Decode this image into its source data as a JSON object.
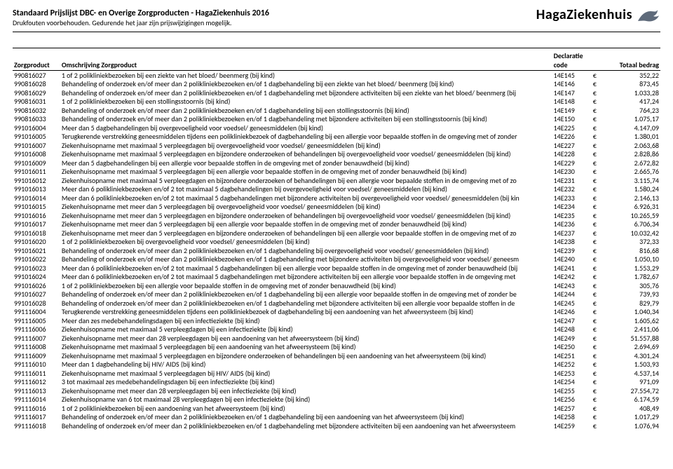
{
  "header": {
    "title": "Standaard Prijslijst DBC- en Overige Zorgproducten - HagaZiekenhuis 2016",
    "subtitle": "Drukfouten voorbehouden. Gedurende het jaar zijn prijswijzigingen mogelijk."
  },
  "logo": {
    "text": "HagaZiekenhuis",
    "mark_fill": "#5e6a7a"
  },
  "columns": {
    "zorgproduct": "Zorgproduct",
    "omschrijving": "Omschrijving Zorgproduct",
    "declaratie_top": "Declaratie",
    "declaratie_bottom": "code",
    "totaal": "Totaal bedrag"
  },
  "currency_symbol": "€",
  "rows": [
    {
      "code": "990816027",
      "oms": "1 of 2 polikliniekbezoeken bij een ziekte van het bloed/ beenmerg (bij kind)",
      "decl": "14E145",
      "amt": "352,22"
    },
    {
      "code": "990816028",
      "oms": "Behandeling of onderzoek en/of meer dan 2 polikliniekbezoeken en/of 1 dagbehandeling bij een ziekte van het bloed/ beenmerg (bij kind)",
      "decl": "14E146",
      "amt": "873,45"
    },
    {
      "code": "990816029",
      "oms": "Behandeling of onderzoek en/of meer dan 2 polikliniekbezoeken en/of 1 dagbehandeling met bijzondere activiteiten bij een ziekte van het bloed/ beenmerg (bij",
      "decl": "14E147",
      "amt": "1.033,28"
    },
    {
      "code": "990816031",
      "oms": "1 of 2 polikliniekbezoeken bij een stollingsstoornis (bij kind)",
      "decl": "14E148",
      "amt": "417,24"
    },
    {
      "code": "990816032",
      "oms": "Behandeling of onderzoek en/of meer dan 2 polikliniekbezoeken en/of 1 dagbehandeling bij een stollingsstoornis (bij kind)",
      "decl": "14E149",
      "amt": "764,23"
    },
    {
      "code": "990816033",
      "oms": "Behandeling of onderzoek en/of meer dan 2 polikliniekbezoeken en/of 1 dagbehandeling met bijzondere activiteiten bij een stollingsstoornis (bij kind)",
      "decl": "14E150",
      "amt": "1.075,17"
    },
    {
      "code": "991016004",
      "oms": "Meer dan 5 dagbehandelingen bij overgevoeligheid voor voedsel/ geneesmiddelen (bij kind)",
      "decl": "14E225",
      "amt": "4.147,09"
    },
    {
      "code": "991016005",
      "oms": "Terugkerende verstrekking geneesmiddelen tijdens een polikliniekbezoek of dagbehandeling bij een allergie voor bepaalde stoffen in de omgeving met of zonder",
      "decl": "14E226",
      "amt": "1.380,01"
    },
    {
      "code": "991016007",
      "oms": "Ziekenhuisopname met maximaal 5 verpleegdagen bij overgevoeligheid voor voedsel/ geneesmiddelen (bij kind)",
      "decl": "14E227",
      "amt": "2.063,68"
    },
    {
      "code": "991016008",
      "oms": "Ziekenhuisopname met maximaal 5 verpleegdagen en bijzondere onderzoeken of behandelingen bij overgevoeligheid voor voedsel/ geneesmiddelen (bij kind)",
      "decl": "14E228",
      "amt": "2.828,86"
    },
    {
      "code": "991016009",
      "oms": "Meer dan 5 dagbehandelingen bij een allergie voor bepaalde stoffen in de omgeving met of zonder benauwdheid (bij kind)",
      "decl": "14E229",
      "amt": "2.672,82"
    },
    {
      "code": "991016011",
      "oms": "Ziekenhuisopname met maximaal 5 verpleegdagen bij een allergie voor bepaalde stoffen in de omgeving met of zonder benauwdheid (bij kind)",
      "decl": "14E230",
      "amt": "2.665,76"
    },
    {
      "code": "991016012",
      "oms": "Ziekenhuisopname met maximaal 5 verpleegdagen en bijzondere onderzoeken of behandelingen bij een allergie voor bepaalde stoffen in de omgeving met of zo",
      "decl": "14E231",
      "amt": "3.115,74"
    },
    {
      "code": "991016013",
      "oms": "Meer dan 6 polikliniekbezoeken en/of 2 tot maximaal 5 dagbehandelingen bij overgevoeligheid voor voedsel/ geneesmiddelen (bij kind)",
      "decl": "14E232",
      "amt": "1.580,24"
    },
    {
      "code": "991016014",
      "oms": "Meer dan 6 polikliniekbezoeken en/of 2 tot maximaal 5 dagbehandelingen met bijzondere activiteiten bij overgevoeligheid voor voedsel/ geneesmiddelen (bij kin",
      "decl": "14E233",
      "amt": "2.146,13"
    },
    {
      "code": "991016015",
      "oms": "Ziekenhuisopname met meer dan 5 verpleegdagen bij overgevoeligheid voor voedsel/ geneesmiddelen (bij kind)",
      "decl": "14E234",
      "amt": "6.926,31"
    },
    {
      "code": "991016016",
      "oms": "Ziekenhuisopname met meer dan 5 verpleegdagen en bijzondere onderzoeken of behandelingen bij overgevoeligheid voor voedsel/ geneesmiddelen (bij kind)",
      "decl": "14E235",
      "amt": "10.265,59"
    },
    {
      "code": "991016017",
      "oms": "Ziekenhuisopname met meer dan 5 verpleegdagen bij een allergie voor bepaalde stoffen in de omgeving met of zonder benauwdheid (bij kind)",
      "decl": "14E236",
      "amt": "6.706,34"
    },
    {
      "code": "991016018",
      "oms": "Ziekenhuisopname met meer dan 5 verpleegdagen en bijzondere onderzoeken of behandelingen bij een allergie voor bepaalde stoffen in de omgeving met of zo",
      "decl": "14E237",
      "amt": "10.032,42"
    },
    {
      "code": "991016020",
      "oms": "1 of 2 polikliniekbezoeken bij overgevoeligheid voor voedsel/ geneesmiddelen (bij kind)",
      "decl": "14E238",
      "amt": "372,33"
    },
    {
      "code": "991016021",
      "oms": "Behandeling of onderzoek en/of meer dan 2 polikliniekbezoeken en/of 1 dagbehandeling bij overgevoeligheid voor voedsel/ geneesmiddelen (bij kind)",
      "decl": "14E239",
      "amt": "816,68"
    },
    {
      "code": "991016022",
      "oms": "Behandeling of onderzoek en/of meer dan 2 polikliniekbezoeken en/of 1 dagbehandeling met bijzondere activiteiten bij overgevoeligheid voor voedsel/ geneesm",
      "decl": "14E240",
      "amt": "1.050,10"
    },
    {
      "code": "991016023",
      "oms": "Meer dan 6 polikliniekbezoeken en/of 2 tot maximaal 5 dagbehandelingen bij een allergie voor bepaalde stoffen in de omgeving met of zonder benauwdheid (bij",
      "decl": "14E241",
      "amt": "1.553,29"
    },
    {
      "code": "991016024",
      "oms": "Meer dan 6 polikliniekbezoeken en/of 2 tot maximaal 5 dagbehandelingen met bijzondere activiteiten bij een allergie voor bepaalde stoffen in de omgeving met",
      "decl": "14E242",
      "amt": "1.782,67"
    },
    {
      "code": "991016026",
      "oms": "1 of 2 polikliniekbezoeken bij een allergie voor bepaalde stoffen in de omgeving met of zonder benauwdheid (bij kind)",
      "decl": "14E243",
      "amt": "305,76"
    },
    {
      "code": "991016027",
      "oms": "Behandeling of onderzoek en/of meer dan 2 polikliniekbezoeken en/of 1 dagbehandeling bij een allergie voor bepaalde stoffen in de omgeving met of zonder be",
      "decl": "14E244",
      "amt": "739,93"
    },
    {
      "code": "991016028",
      "oms": "Behandeling of onderzoek en/of meer dan 2 polikliniekbezoeken en/of 1 dagbehandeling met bijzondere activiteiten bij een allergie voor bepaalde stoffen in de",
      "decl": "14E245",
      "amt": "829,79"
    },
    {
      "code": "991116004",
      "oms": "Terugkerende verstrekking geneesmiddelen tijdens een polikliniekbezoek of dagbehandeling bij een aandoening van het afweersysteem (bij kind)",
      "decl": "14E246",
      "amt": "1.040,34"
    },
    {
      "code": "991116005",
      "oms": "Meer dan zes medebehandelingsdagen bij een infectieziekte (bij kind)",
      "decl": "14E247",
      "amt": "1.605,62"
    },
    {
      "code": "991116006",
      "oms": "Ziekenhuisopname met maximaal 5 verpleegdagen bij een infectieziekte (bij kind)",
      "decl": "14E248",
      "amt": "2.411,06"
    },
    {
      "code": "991116007",
      "oms": "Ziekenhuisopname met meer dan 28 verpleegdagen bij een aandoening van het afweersysteem (bij kind)",
      "decl": "14E249",
      "amt": "51.557,88"
    },
    {
      "code": "991116008",
      "oms": "Ziekenhuisopname met maximaal 5 verpleegdagen bij een aandoening van het afweersysteem (bij kind)",
      "decl": "14E250",
      "amt": "2.694,69"
    },
    {
      "code": "991116009",
      "oms": "Ziekenhuisopname met maximaal 5 verpleegdagen en bijzondere onderzoeken of behandelingen bij een aandoening van het afweersysteem (bij kind)",
      "decl": "14E251",
      "amt": "4.301,24"
    },
    {
      "code": "991116010",
      "oms": "Meer dan 1 dagbehandeling bij HIV/ AIDS (bij kind)",
      "decl": "14E252",
      "amt": "1.503,93"
    },
    {
      "code": "991116011",
      "oms": "Ziekenhuisopname met maximaal 5 verpleegdagen bij HIV/ AIDS (bij kind)",
      "decl": "14E253",
      "amt": "4.537,14"
    },
    {
      "code": "991116012",
      "oms": "3 tot maximaal zes medebehandelingsdagen bij een infectieziekte (bij kind)",
      "decl": "14E254",
      "amt": "971,09"
    },
    {
      "code": "991116013",
      "oms": "Ziekenhuisopname met meer dan 28 verpleegdagen bij een infectieziekte (bij kind)",
      "decl": "14E255",
      "amt": "27.554,72"
    },
    {
      "code": "991116014",
      "oms": "Ziekenhuisopname van 6 tot maximaal 28 verpleegdagen bij een infectieziekte (bij kind)",
      "decl": "14E256",
      "amt": "6.174,59"
    },
    {
      "code": "991116016",
      "oms": "1 of 2 polikliniekbezoeken bij een aandoening van het afweersysteem (bij kind)",
      "decl": "14E257",
      "amt": "408,49"
    },
    {
      "code": "991116017",
      "oms": "Behandeling of onderzoek en/of meer dan 2 polikliniekbezoeken en/of 1 dagbehandeling bij een aandoening van het afweersysteem (bij kind)",
      "decl": "14E258",
      "amt": "1.017,29"
    },
    {
      "code": "991116018",
      "oms": "Behandeling of onderzoek en/of meer dan 2 polikliniekbezoeken en/of 1 dagbehandeling met bijzondere activiteiten bij een aandoening van het afweersysteem",
      "decl": "14E259",
      "amt": "1.076,94"
    }
  ]
}
